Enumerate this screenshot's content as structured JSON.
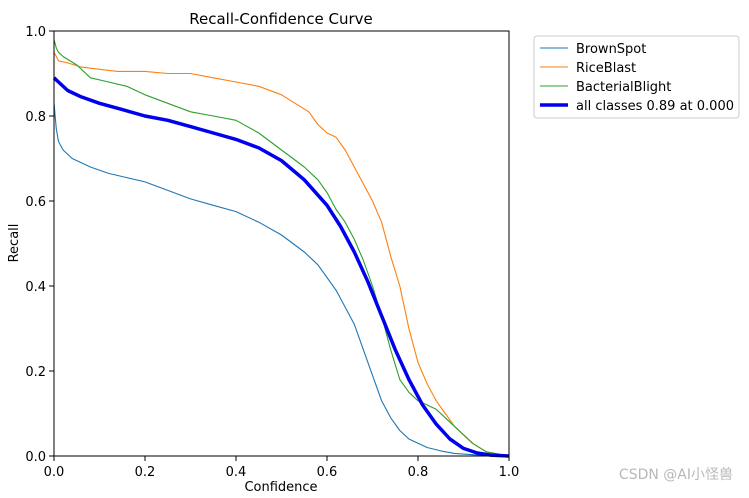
{
  "chart_data": {
    "type": "line",
    "title": "Recall-Confidence Curve",
    "xlabel": "Confidence",
    "ylabel": "Recall",
    "xlim": [
      0,
      1
    ],
    "ylim": [
      0,
      1
    ],
    "xticks": [
      "0.0",
      "0.2",
      "0.4",
      "0.6",
      "0.8",
      "1.0"
    ],
    "yticks": [
      "0.0",
      "0.2",
      "0.4",
      "0.6",
      "0.8",
      "1.0"
    ],
    "legend_position": "outside-top-right",
    "series": [
      {
        "name": "BrownSpot",
        "color": "#1f77b4",
        "emphasis": false,
        "x": [
          0.0,
          0.005,
          0.01,
          0.02,
          0.04,
          0.08,
          0.12,
          0.16,
          0.2,
          0.25,
          0.3,
          0.35,
          0.4,
          0.45,
          0.5,
          0.55,
          0.58,
          0.6,
          0.62,
          0.64,
          0.66,
          0.68,
          0.7,
          0.72,
          0.74,
          0.76,
          0.78,
          0.8,
          0.82,
          0.85,
          0.88,
          0.92,
          0.96,
          1.0
        ],
        "values": [
          0.83,
          0.77,
          0.74,
          0.72,
          0.7,
          0.68,
          0.665,
          0.655,
          0.645,
          0.625,
          0.605,
          0.59,
          0.575,
          0.55,
          0.52,
          0.48,
          0.45,
          0.42,
          0.39,
          0.35,
          0.31,
          0.25,
          0.19,
          0.13,
          0.09,
          0.06,
          0.04,
          0.03,
          0.02,
          0.012,
          0.006,
          0.003,
          0.001,
          0.0
        ]
      },
      {
        "name": "RiceBlast",
        "color": "#ff7f0e",
        "emphasis": false,
        "x": [
          0.0,
          0.005,
          0.01,
          0.03,
          0.06,
          0.1,
          0.14,
          0.2,
          0.25,
          0.3,
          0.35,
          0.4,
          0.45,
          0.5,
          0.53,
          0.56,
          0.58,
          0.6,
          0.62,
          0.64,
          0.66,
          0.68,
          0.7,
          0.72,
          0.74,
          0.76,
          0.78,
          0.8,
          0.82,
          0.84,
          0.86,
          0.88,
          0.9,
          0.92,
          0.95,
          1.0
        ],
        "values": [
          0.95,
          0.94,
          0.93,
          0.925,
          0.915,
          0.91,
          0.905,
          0.905,
          0.9,
          0.9,
          0.89,
          0.88,
          0.87,
          0.85,
          0.83,
          0.81,
          0.78,
          0.76,
          0.75,
          0.72,
          0.68,
          0.64,
          0.6,
          0.55,
          0.47,
          0.4,
          0.3,
          0.22,
          0.17,
          0.13,
          0.1,
          0.07,
          0.05,
          0.03,
          0.01,
          0.0
        ]
      },
      {
        "name": "BacterialBlight",
        "color": "#2ca02c",
        "emphasis": false,
        "x": [
          0.0,
          0.005,
          0.01,
          0.02,
          0.05,
          0.08,
          0.12,
          0.16,
          0.2,
          0.25,
          0.3,
          0.35,
          0.4,
          0.45,
          0.5,
          0.55,
          0.58,
          0.6,
          0.62,
          0.64,
          0.66,
          0.68,
          0.7,
          0.72,
          0.74,
          0.76,
          0.78,
          0.8,
          0.82,
          0.84,
          0.86,
          0.88,
          0.9,
          0.92,
          0.95,
          1.0
        ],
        "values": [
          0.98,
          0.96,
          0.95,
          0.94,
          0.92,
          0.89,
          0.88,
          0.87,
          0.85,
          0.83,
          0.81,
          0.8,
          0.79,
          0.76,
          0.72,
          0.68,
          0.65,
          0.62,
          0.58,
          0.55,
          0.51,
          0.46,
          0.4,
          0.33,
          0.25,
          0.18,
          0.15,
          0.13,
          0.12,
          0.11,
          0.09,
          0.07,
          0.05,
          0.03,
          0.01,
          0.0
        ]
      },
      {
        "name": "all classes 0.89 at 0.000",
        "color": "#0000ee",
        "emphasis": true,
        "x": [
          0.0,
          0.01,
          0.03,
          0.06,
          0.1,
          0.15,
          0.2,
          0.25,
          0.3,
          0.35,
          0.4,
          0.45,
          0.5,
          0.55,
          0.6,
          0.63,
          0.66,
          0.69,
          0.72,
          0.75,
          0.78,
          0.81,
          0.84,
          0.87,
          0.9,
          0.93,
          0.96,
          1.0
        ],
        "values": [
          0.89,
          0.88,
          0.86,
          0.845,
          0.83,
          0.815,
          0.8,
          0.79,
          0.775,
          0.76,
          0.745,
          0.725,
          0.695,
          0.65,
          0.59,
          0.54,
          0.48,
          0.41,
          0.33,
          0.25,
          0.18,
          0.12,
          0.075,
          0.04,
          0.018,
          0.007,
          0.002,
          0.0
        ]
      }
    ]
  },
  "watermark": "CSDN @AI小怪兽"
}
